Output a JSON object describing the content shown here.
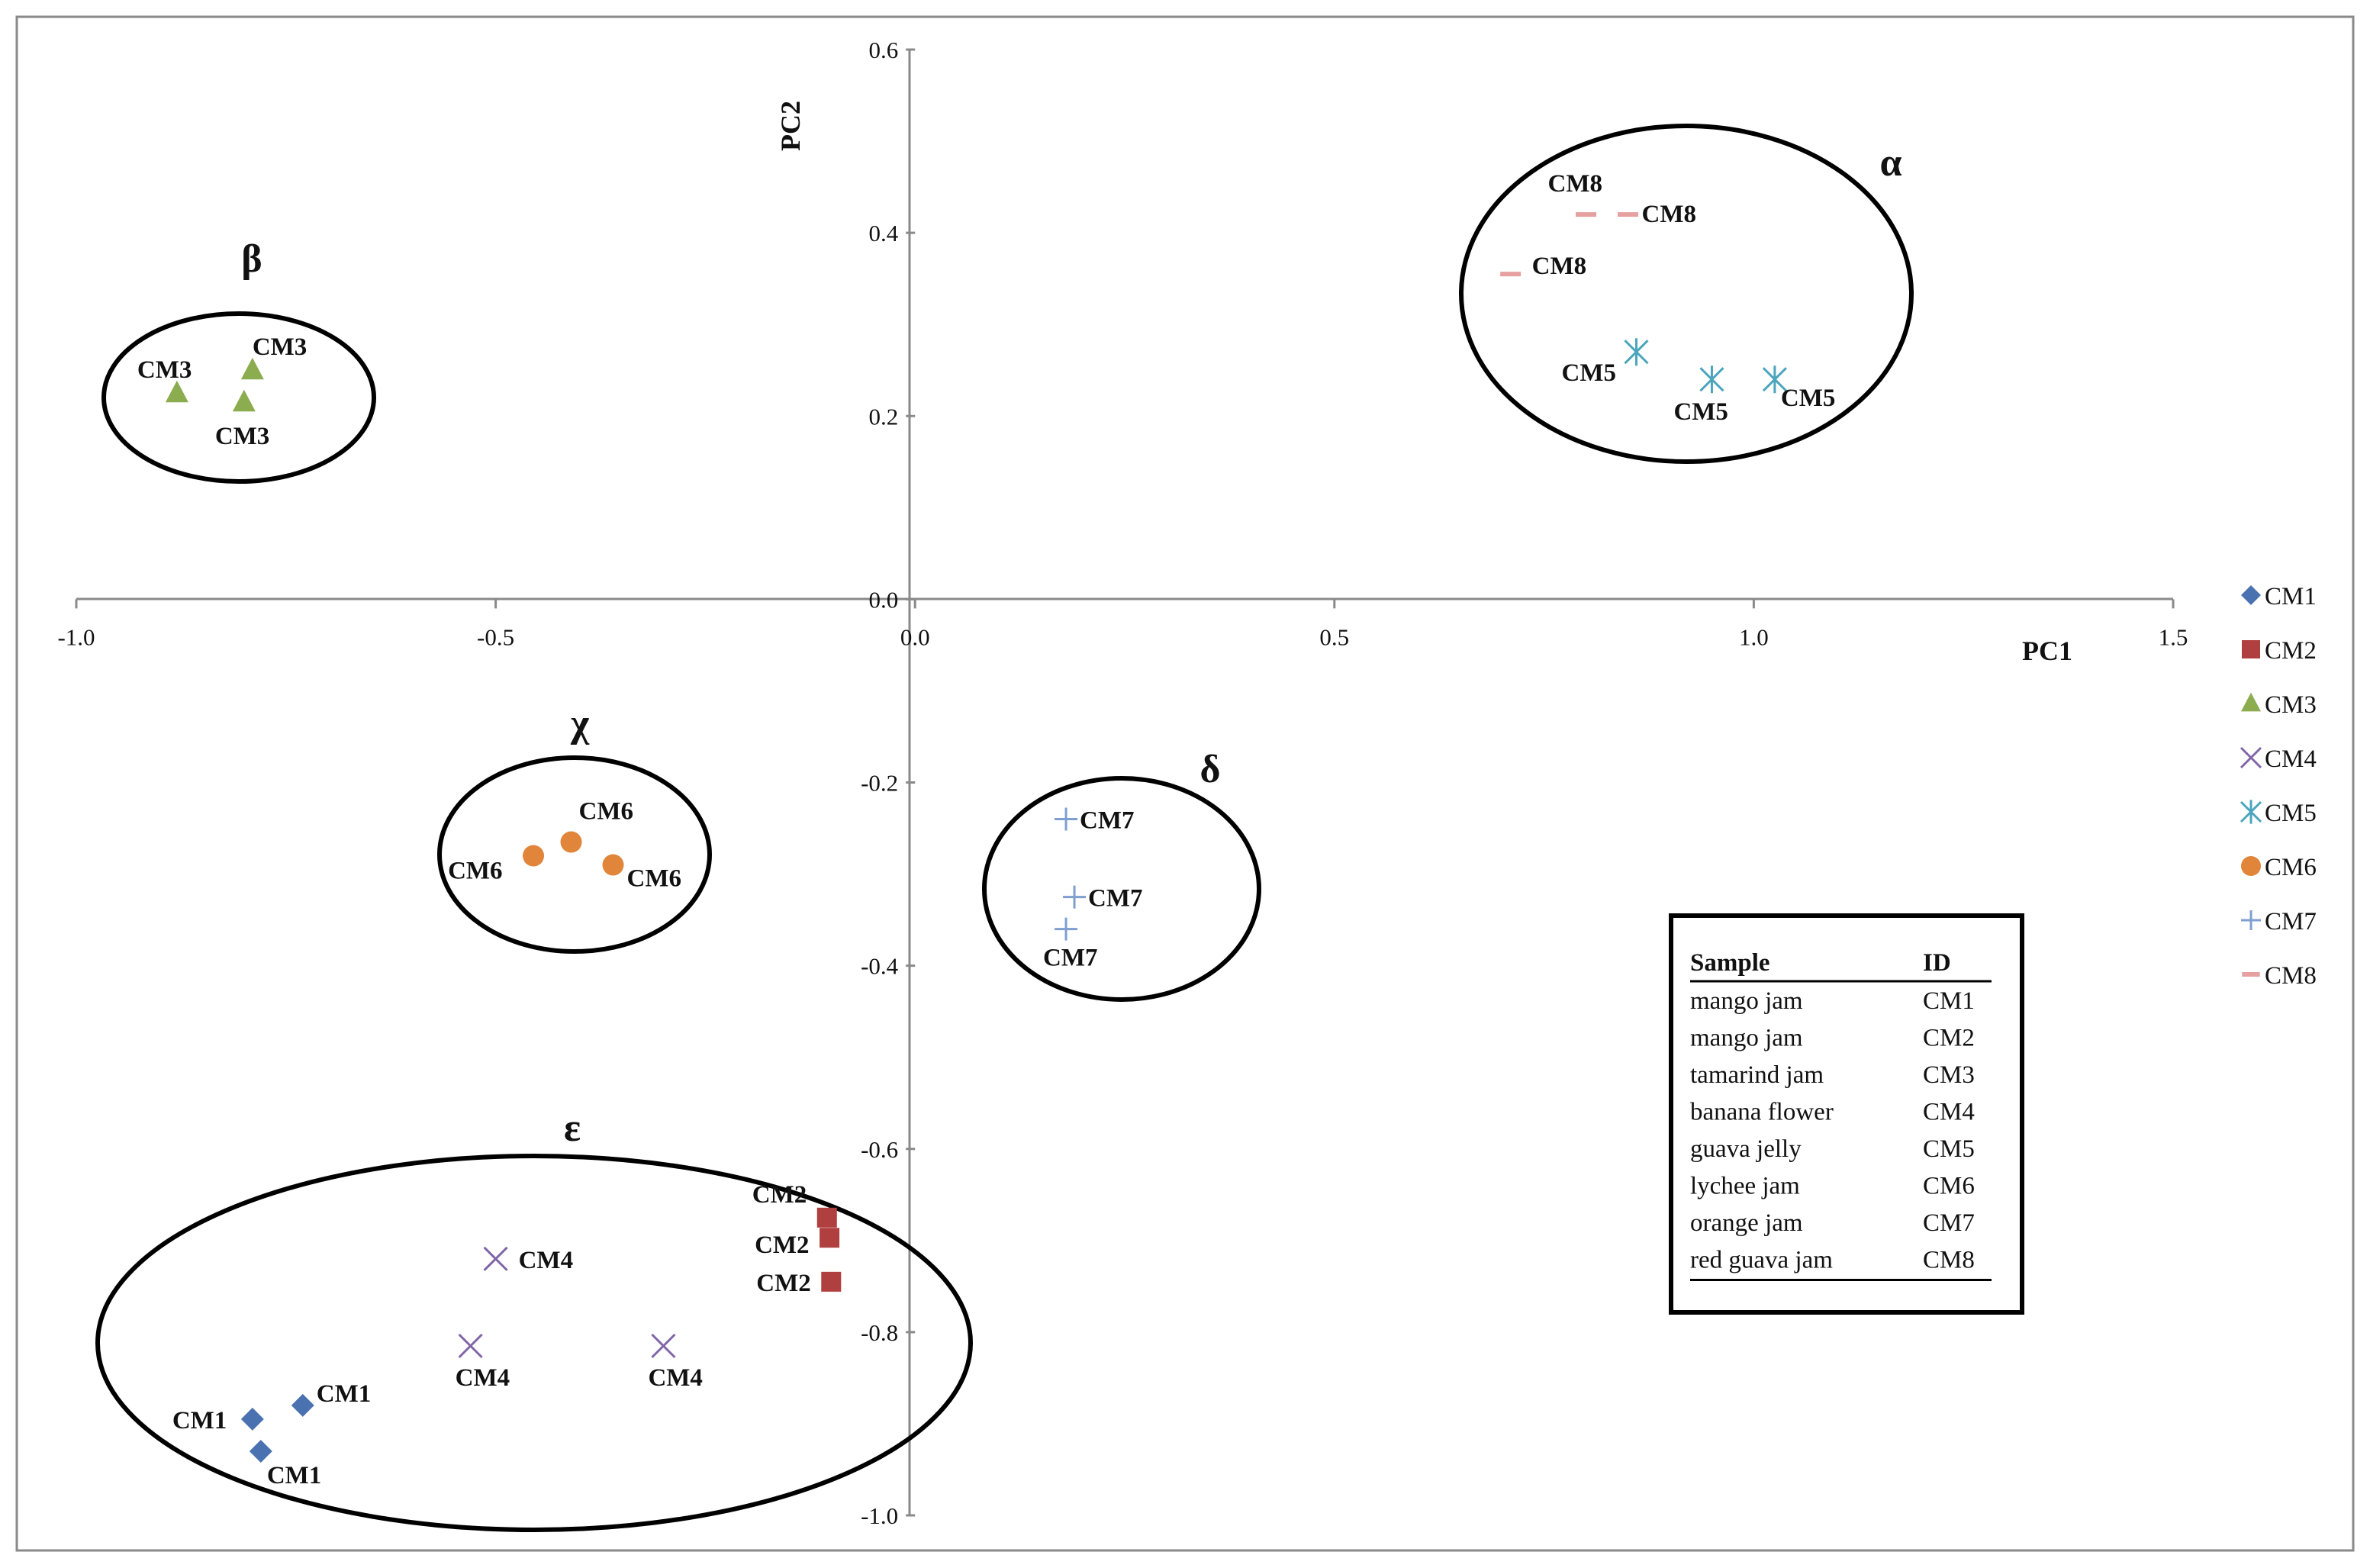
{
  "chart_data": {
    "type": "scatter",
    "title": "",
    "xlabel": "PC1",
    "ylabel": "PC2",
    "xlim": [
      -1.0,
      1.5
    ],
    "ylim": [
      -1.0,
      0.6
    ],
    "xticks": [
      "-1.0",
      "-0.5",
      "0.0",
      "0.5",
      "1.0",
      "1.5"
    ],
    "yticks": [
      "-1.0",
      "-0.8",
      "-0.6",
      "-0.4",
      "-0.2",
      "0.0",
      "0.2",
      "0.4",
      "0.6"
    ],
    "grid": false,
    "legend_position": "right",
    "series": [
      {
        "name": "CM1",
        "marker": "diamond",
        "color": "#4a72b0",
        "points": [
          {
            "x": -0.79,
            "y": -0.895
          },
          {
            "x": -0.73,
            "y": -0.88
          },
          {
            "x": -0.78,
            "y": -0.93
          }
        ],
        "labels": [
          "CM1",
          "CM1",
          "CM1"
        ]
      },
      {
        "name": "CM2",
        "marker": "square",
        "color": "#b04040",
        "points": [
          {
            "x": -0.105,
            "y": -0.675
          },
          {
            "x": -0.102,
            "y": -0.697
          },
          {
            "x": -0.1,
            "y": -0.745
          }
        ],
        "labels": [
          "CM2",
          "CM2",
          "CM2"
        ]
      },
      {
        "name": "CM3",
        "marker": "triangle",
        "color": "#8bac4f",
        "points": [
          {
            "x": -0.88,
            "y": 0.225
          },
          {
            "x": -0.79,
            "y": 0.25
          },
          {
            "x": -0.8,
            "y": 0.215
          }
        ],
        "labels": [
          "CM3",
          "CM3",
          "CM3"
        ]
      },
      {
        "name": "CM4",
        "marker": "x",
        "color": "#8066a8",
        "points": [
          {
            "x": -0.5,
            "y": -0.72
          },
          {
            "x": -0.53,
            "y": -0.815
          },
          {
            "x": -0.3,
            "y": -0.815
          }
        ],
        "labels": [
          "CM4",
          "CM4",
          "CM4"
        ]
      },
      {
        "name": "CM5",
        "marker": "star",
        "color": "#4aa5bd",
        "points": [
          {
            "x": 0.86,
            "y": 0.27
          },
          {
            "x": 0.95,
            "y": 0.24
          },
          {
            "x": 1.025,
            "y": 0.24
          }
        ],
        "labels": [
          "CM5",
          "CM5",
          "CM5"
        ]
      },
      {
        "name": "CM6",
        "marker": "circle",
        "color": "#e0853a",
        "points": [
          {
            "x": -0.455,
            "y": -0.28
          },
          {
            "x": -0.41,
            "y": -0.265
          },
          {
            "x": -0.36,
            "y": -0.29
          }
        ],
        "labels": [
          "CM6",
          "CM6",
          "CM6"
        ]
      },
      {
        "name": "CM7",
        "marker": "plus",
        "color": "#7f9fd0",
        "points": [
          {
            "x": 0.18,
            "y": -0.24
          },
          {
            "x": 0.19,
            "y": -0.325
          },
          {
            "x": 0.18,
            "y": -0.36
          }
        ],
        "labels": [
          "CM7",
          "CM7",
          "CM7"
        ]
      },
      {
        "name": "CM8",
        "marker": "dash",
        "color": "#e6a0a0",
        "points": [
          {
            "x": 0.8,
            "y": 0.42
          },
          {
            "x": 0.85,
            "y": 0.42
          },
          {
            "x": 0.71,
            "y": 0.355
          }
        ],
        "labels": [
          "CM8",
          "CM8",
          "CM8"
        ]
      }
    ],
    "clusters": [
      {
        "label": "α",
        "members": [
          "CM5",
          "CM8"
        ]
      },
      {
        "label": "β",
        "members": [
          "CM3"
        ]
      },
      {
        "label": "χ",
        "members": [
          "CM6"
        ]
      },
      {
        "label": "δ",
        "members": [
          "CM7"
        ]
      },
      {
        "label": "ε",
        "members": [
          "CM1",
          "CM2",
          "CM4"
        ]
      }
    ],
    "id_table": {
      "headers": [
        "Sample",
        "ID"
      ],
      "rows": [
        [
          "mango jam",
          "CM1"
        ],
        [
          "mango jam",
          "CM2"
        ],
        [
          "tamarind jam",
          "CM3"
        ],
        [
          "banana flower",
          "CM4"
        ],
        [
          "guava jelly",
          "CM5"
        ],
        [
          "lychee jam",
          "CM6"
        ],
        [
          "orange jam",
          "CM7"
        ],
        [
          "red guava jam",
          "CM8"
        ]
      ]
    }
  }
}
